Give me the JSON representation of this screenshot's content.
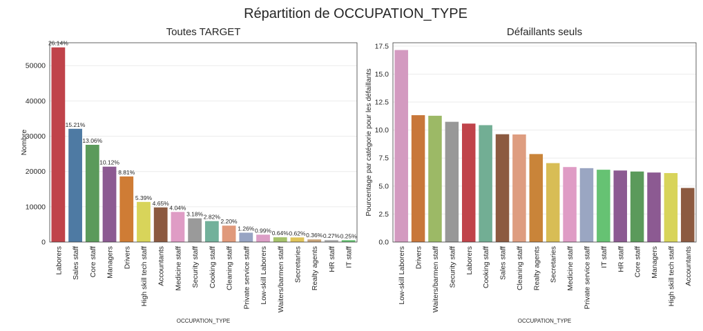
{
  "figure": {
    "title": "Répartition de OCCUPATION_TYPE"
  },
  "chart_data": [
    {
      "type": "bar",
      "title": "Toutes TARGET",
      "xlabel": "OCCUPATION_TYPE",
      "ylabel": "Nombre",
      "ylim": [
        0,
        56500
      ],
      "yticks": [
        0,
        10000,
        20000,
        30000,
        40000,
        50000
      ],
      "grid": true,
      "categories": [
        "Laborers",
        "Sales staff",
        "Core staff",
        "Managers",
        "Drivers",
        "High skill tech staff",
        "Accountants",
        "Medicine staff",
        "Security staff",
        "Cooking staff",
        "Cleaning staff",
        "Private service staff",
        "Low-skill Laborers",
        "Waiters/barmen staff",
        "Secretaries",
        "Realty agents",
        "HR staff",
        "IT staff"
      ],
      "values": [
        55186,
        32102,
        27570,
        21371,
        18603,
        11380,
        9813,
        8537,
        6721,
        5946,
        4653,
        2652,
        2093,
        1348,
        1305,
        751,
        563,
        526
      ],
      "data_labels": [
        "26.14%",
        "15.21%",
        "13.06%",
        "10.12%",
        "8.81%",
        "5.39%",
        "4.65%",
        "4.04%",
        "3.18%",
        "2.82%",
        "2.20%",
        "1.26%",
        "0.99%",
        "0.64%",
        "0.62%",
        "0.36%",
        "0.27%",
        "0.25%"
      ],
      "colors": [
        "#c0434a",
        "#4e7aa3",
        "#5b9a5b",
        "#8c5a92",
        "#cf7c35",
        "#d8d45a",
        "#8c5a40",
        "#df9cc5",
        "#9a9a9a",
        "#72b19b",
        "#e0997b",
        "#97a4c3",
        "#dc9ec6",
        "#a5c26a",
        "#e0c45a",
        "#c9a57a",
        "#b0b0b0",
        "#66c273"
      ]
    },
    {
      "type": "bar",
      "title": "Défaillants seuls",
      "xlabel": "OCCUPATION_TYPE",
      "ylabel": "Pourcentage par catégorie pour les défaillants",
      "ylim": [
        0,
        17.8
      ],
      "yticks": [
        0.0,
        2.5,
        5.0,
        7.5,
        10.0,
        12.5,
        15.0,
        17.5
      ],
      "ytick_labels": [
        "0.0",
        "2.5",
        "5.0",
        "7.5",
        "10.0",
        "12.5",
        "15.0",
        "17.5"
      ],
      "grid": true,
      "categories": [
        "Low-skill Laborers",
        "Drivers",
        "Waiters/barmen staff",
        "Security staff",
        "Laborers",
        "Cooking staff",
        "Sales staff",
        "Cleaning staff",
        "Realty agents",
        "Secretaries",
        "Medicine staff",
        "Private service staff",
        "IT staff",
        "HR staff",
        "Core staff",
        "Managers",
        "High skill tech staff",
        "Accountants"
      ],
      "values": [
        17.15,
        11.33,
        11.28,
        10.74,
        10.58,
        10.44,
        9.63,
        9.61,
        7.86,
        7.05,
        6.7,
        6.6,
        6.46,
        6.39,
        6.3,
        6.21,
        6.16,
        4.83
      ],
      "colors": [
        "#d39ac0",
        "#c8773a",
        "#9cb966",
        "#989898",
        "#c0434a",
        "#72ae94",
        "#8c5a40",
        "#de9d80",
        "#c98439",
        "#d8bd55",
        "#df9cc5",
        "#9aa6c2",
        "#66c273",
        "#8c5a92",
        "#5b9a5b",
        "#8c5a92",
        "#d8d45a",
        "#8c5a40"
      ]
    }
  ]
}
